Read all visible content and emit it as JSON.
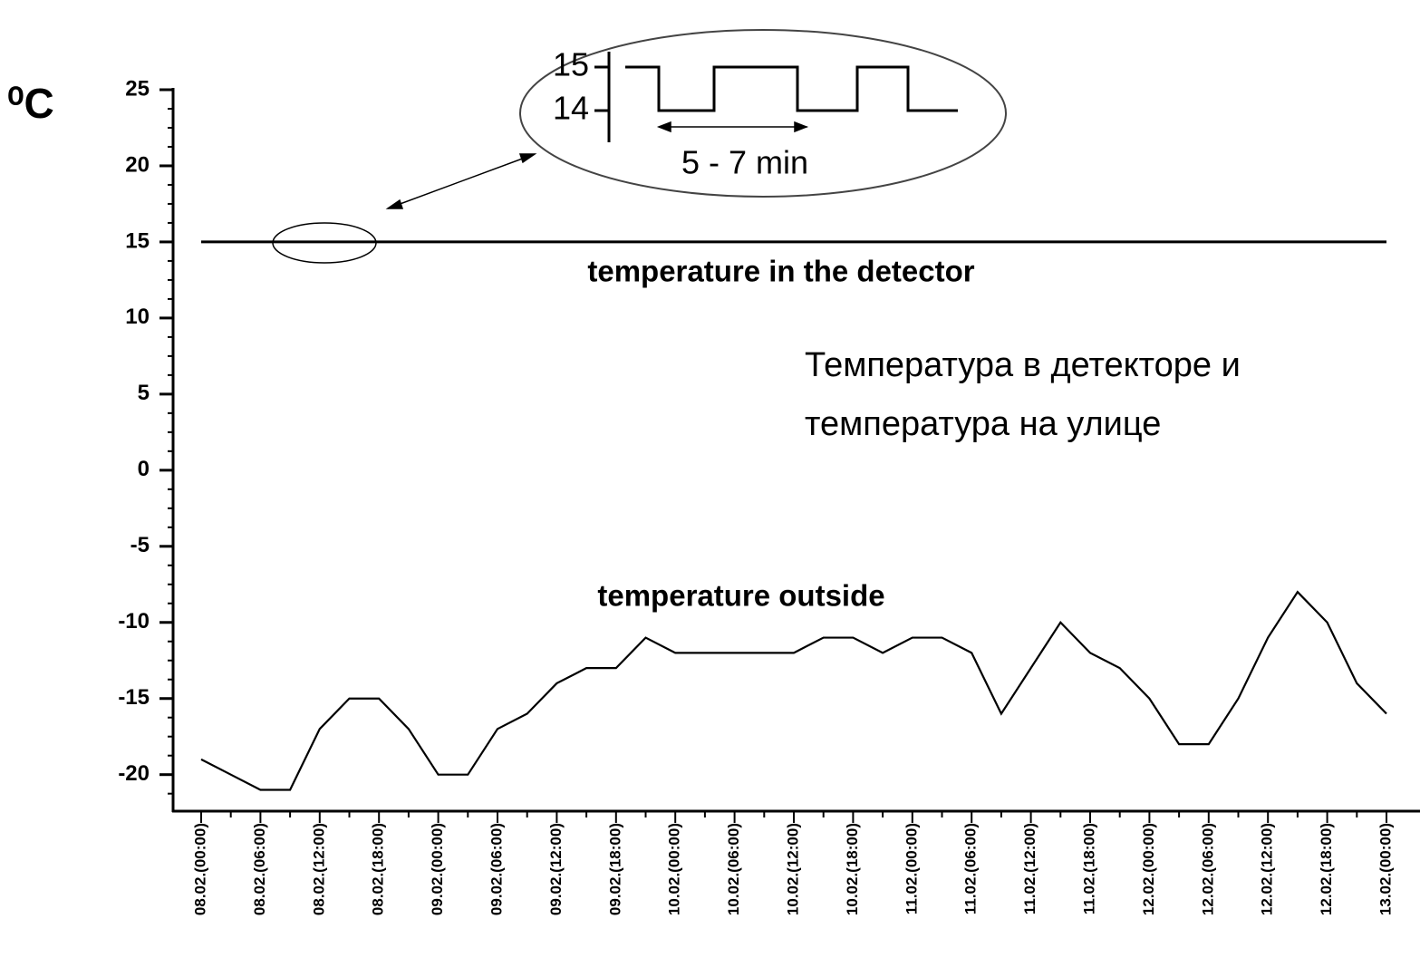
{
  "chart_data": {
    "type": "line",
    "y_label": "⁰C",
    "categories": [
      "08.02.(00:00)",
      null,
      "08.02.(06:00)",
      null,
      "08.02.(12:00)",
      null,
      "08.02.(18:00)",
      null,
      "09.02.(00:00)",
      null,
      "09.02.(06:00)",
      null,
      "09.02.(12:00)",
      null,
      "09.02.(18:00)",
      null,
      "10.02.(00:00)",
      null,
      "10.02.(06:00)",
      null,
      "10.02.(12:00)",
      null,
      "10.02.(18:00)",
      null,
      "11.02.(00:00)",
      null,
      "11.02.(06:00)",
      null,
      "11.02.(12:00)",
      null,
      "11.02.(18:00)",
      null,
      "12.02.(00:00)",
      null,
      "12.02.(06:00)",
      null,
      "12.02.(12:00)",
      null,
      "12.02.(18:00)",
      null,
      "13.02.(00:00)"
    ],
    "series": [
      {
        "name": "temperature in the detector",
        "color": "#000000",
        "values": [
          15,
          15,
          15,
          15,
          15,
          15,
          15,
          15,
          15,
          15,
          15,
          15,
          15,
          15,
          15,
          15,
          15,
          15,
          15,
          15,
          15,
          15,
          15,
          15,
          15,
          15,
          15,
          15,
          15,
          15,
          15,
          15,
          15,
          15,
          15,
          15,
          15,
          15,
          15,
          15,
          15
        ]
      },
      {
        "name": "temperature outside",
        "color": "#000000",
        "values": [
          -19,
          -20,
          -21,
          -21,
          -17,
          -15,
          -15,
          -17,
          -20,
          -20,
          -17,
          -16,
          -14,
          -13,
          -13,
          -11,
          -12,
          -12,
          -12,
          -12,
          -12,
          -11,
          -11,
          -12,
          -11,
          -11,
          -12,
          -16,
          -13,
          -10,
          -12,
          -13,
          -15,
          -18,
          -18,
          -15,
          -11,
          -8,
          -10,
          -14,
          -16
        ]
      }
    ],
    "ylim": [
      -22.4,
      25
    ],
    "yticks": [
      25,
      20,
      15,
      10,
      5,
      0,
      -5,
      -10,
      -15,
      -20
    ],
    "inset": {
      "yticks": [
        15,
        14
      ],
      "annotation": "5 - 7 min"
    },
    "note": [
      "Температура в детекторе и",
      "температура на улице"
    ]
  }
}
